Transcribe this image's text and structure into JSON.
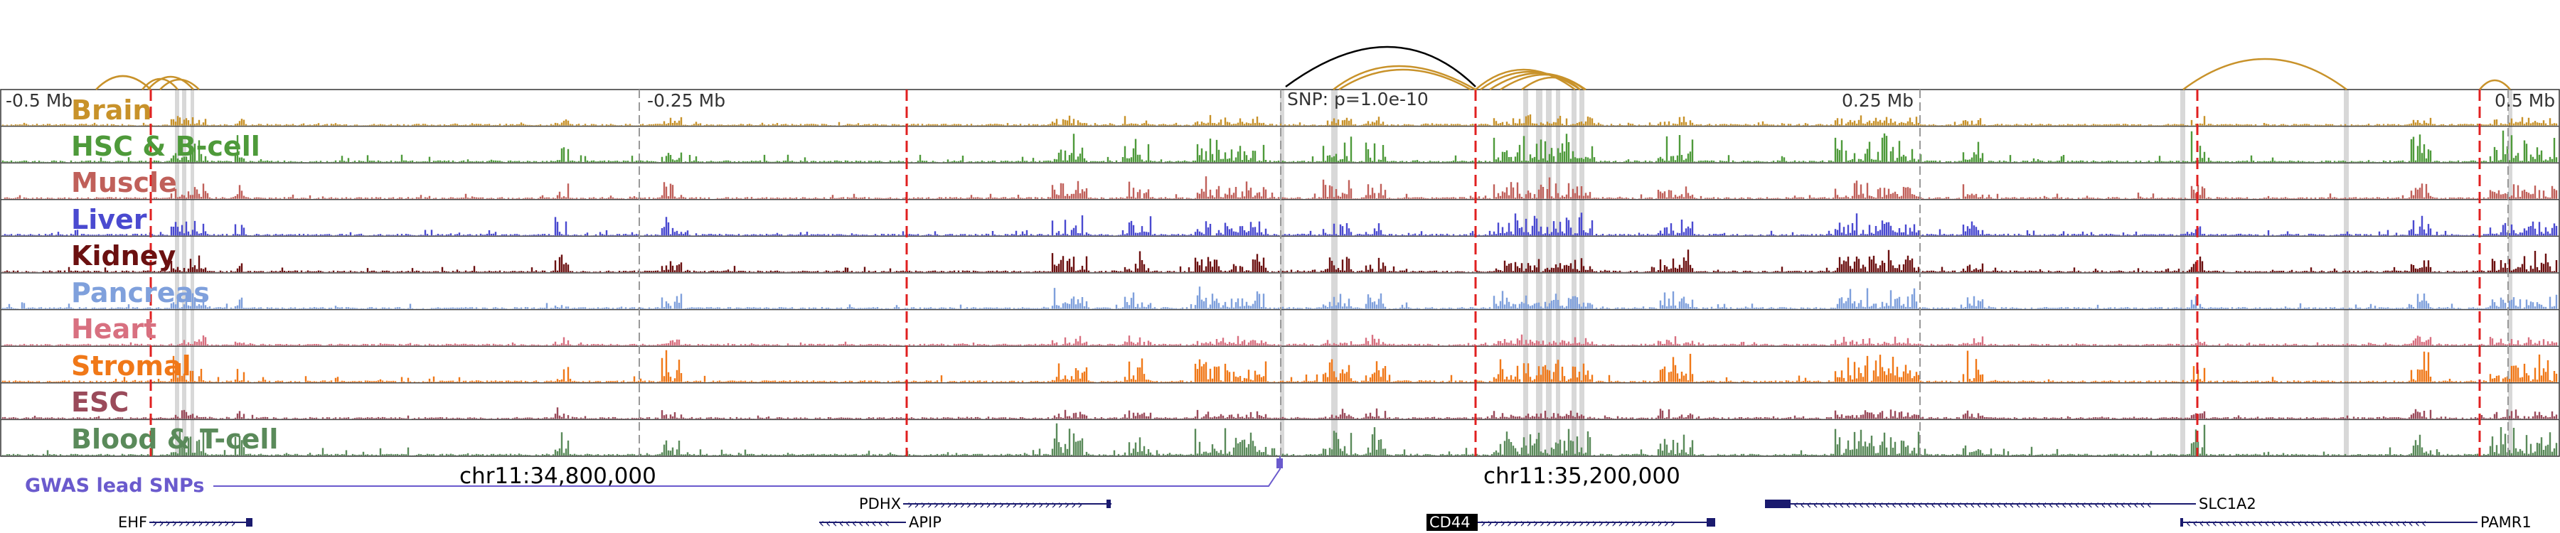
{
  "chart_data": {
    "type": "genome-track",
    "scale_labels": [
      "-0.5 Mb",
      "-0.25 Mb",
      "SNP: p=1.0e-10",
      "0.25 Mb",
      "0.5 Mb"
    ],
    "tracks": [
      {
        "name": "Brain",
        "color": "#c8922a",
        "label_color": "#c8922a",
        "style": "low"
      },
      {
        "name": "HSC & B-cell",
        "color": "#4e9a3a",
        "label_color": "#4e9a3a",
        "style": "high"
      },
      {
        "name": "Muscle",
        "color": "#c0605a",
        "label_color": "#c0605a",
        "style": "mid"
      },
      {
        "name": "Liver",
        "color": "#4a4ad0",
        "label_color": "#4a4ad0",
        "style": "mid"
      },
      {
        "name": "Kidney",
        "color": "#6b1010",
        "label_color": "#6b1010",
        "style": "mid"
      },
      {
        "name": "Pancreas",
        "color": "#7fa0dc",
        "label_color": "#7fa0dc",
        "style": "mid"
      },
      {
        "name": "Heart",
        "color": "#d87080",
        "label_color": "#d87080",
        "style": "low"
      },
      {
        "name": "Stromal",
        "color": "#f07818",
        "label_color": "#f07818",
        "style": "high"
      },
      {
        "name": "ESC",
        "color": "#9a4a5a",
        "label_color": "#9a4a5a",
        "style": "low"
      },
      {
        "name": "Blood & T-cell",
        "color": "#5a8a5a",
        "label_color": "#5a8a5a",
        "style": "high"
      }
    ],
    "gwas_label": "GWAS lead SNPs",
    "coordinates": [
      "chr11:34,800,000",
      "chr11:35,200,000"
    ],
    "genes": [
      {
        "name": "EHF",
        "strand": "+",
        "row": 2
      },
      {
        "name": "PDHX",
        "strand": "+",
        "row": 1
      },
      {
        "name": "APIP",
        "strand": "-",
        "row": 2
      },
      {
        "name": "CD44",
        "strand": "+",
        "row": 2,
        "highlight": true
      },
      {
        "name": "SLC1A2",
        "strand": "-",
        "row": 1
      },
      {
        "name": "PAMR1",
        "strand": "-",
        "row": 2
      }
    ],
    "colors": {
      "red_line": "#e02020",
      "gray_highlight": "#d8d8d8",
      "loop_color": "#c8922a",
      "snp_color": "#6a5acd",
      "gene_color": "#1a1a6e"
    }
  }
}
